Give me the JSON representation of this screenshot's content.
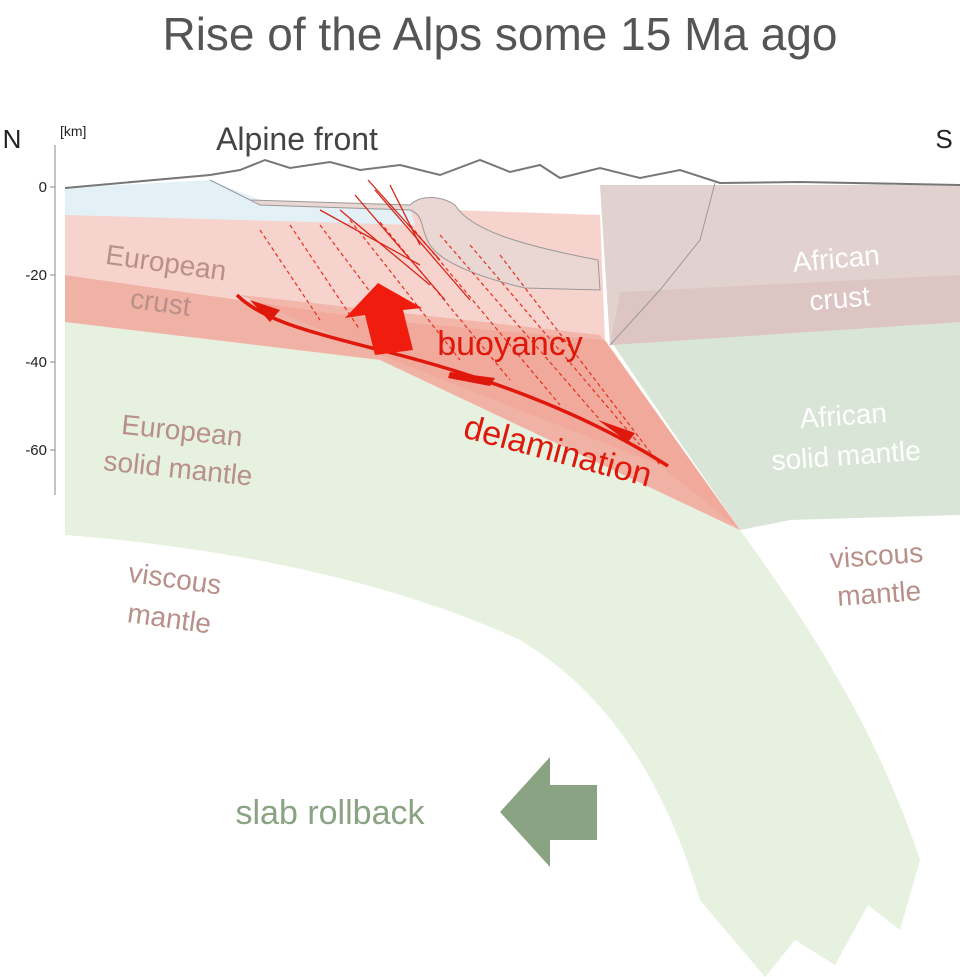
{
  "title": "Rise of the Alps some 15 Ma ago",
  "compass": {
    "north": "N",
    "south": "S"
  },
  "depth_axis": {
    "unit": "[km]",
    "ticks": [
      "0",
      "-20",
      "-40",
      "-60"
    ]
  },
  "labels": {
    "alpine_front": "Alpine front",
    "european_crust": [
      "European",
      "crust"
    ],
    "african_crust": [
      "African",
      "crust"
    ],
    "european_mantle": [
      "European",
      "solid mantle"
    ],
    "african_mantle": [
      "African",
      "solid mantle"
    ],
    "viscous_mantle_north": [
      "viscous",
      "mantle"
    ],
    "viscous_mantle_south": [
      "viscous",
      "mantle"
    ],
    "buoyancy": "buoyancy",
    "delamination": "delamination",
    "slab_rollback": "slab rollback"
  }
}
